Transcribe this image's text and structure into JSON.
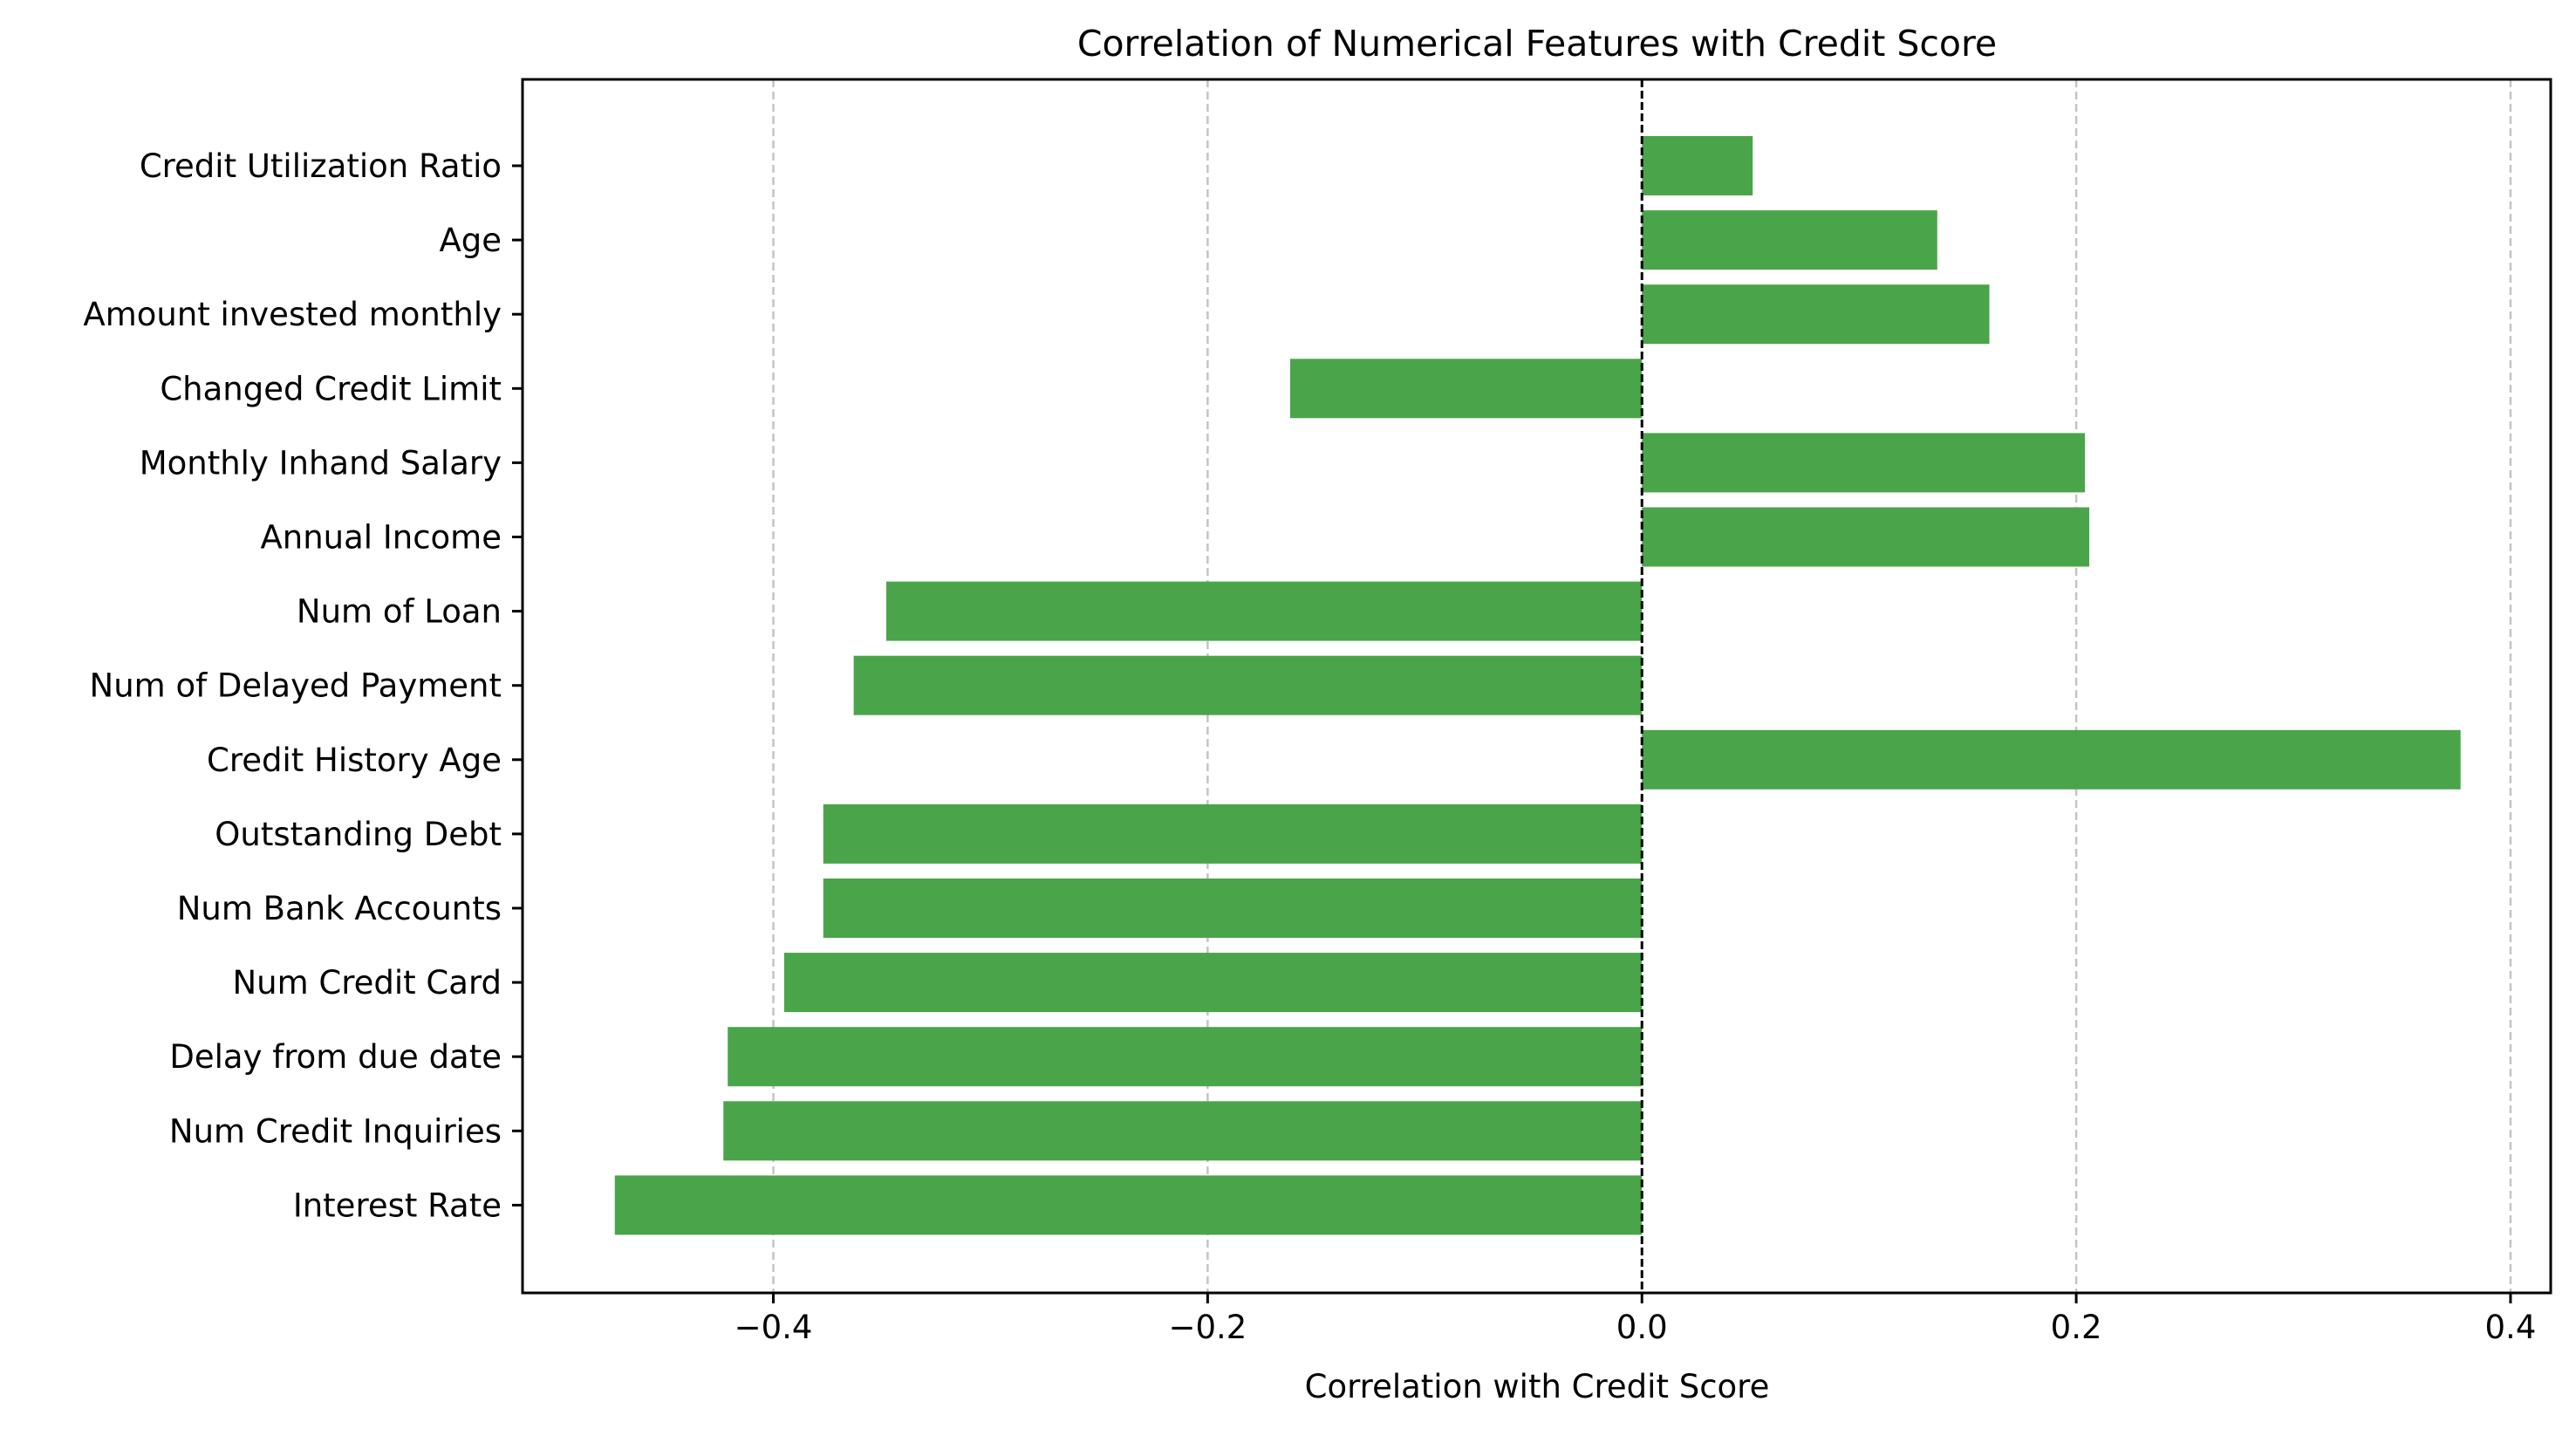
{
  "chart_data": {
    "type": "bar",
    "orientation": "horizontal",
    "title": "Correlation of Numerical Features with Credit Score",
    "xlabel": "Correlation with Credit Score",
    "ylabel": "",
    "xlim": [
      -0.5155,
      0.4185
    ],
    "xticks": [
      -0.4,
      -0.2,
      0.0,
      0.2,
      0.4
    ],
    "xtick_labels": [
      "−0.4",
      "−0.2",
      "0.0",
      "0.2",
      "0.4"
    ],
    "grid": "x-dashed",
    "reference_line": 0.0,
    "bar_color": "#4aa54a",
    "categories": [
      "Credit Utilization Ratio",
      "Age",
      "Amount invested monthly",
      "Changed Credit Limit",
      "Monthly Inhand Salary",
      "Annual Income",
      "Num of Loan",
      "Num of Delayed Payment",
      "Credit History Age",
      "Outstanding Debt",
      "Num Bank Accounts",
      "Num Credit Card",
      "Delay from due date",
      "Num Credit Inquiries",
      "Interest Rate"
    ],
    "values": [
      0.051,
      0.136,
      0.16,
      -0.162,
      0.204,
      0.206,
      -0.348,
      -0.363,
      0.377,
      -0.377,
      -0.377,
      -0.395,
      -0.421,
      -0.423,
      -0.473
    ]
  }
}
